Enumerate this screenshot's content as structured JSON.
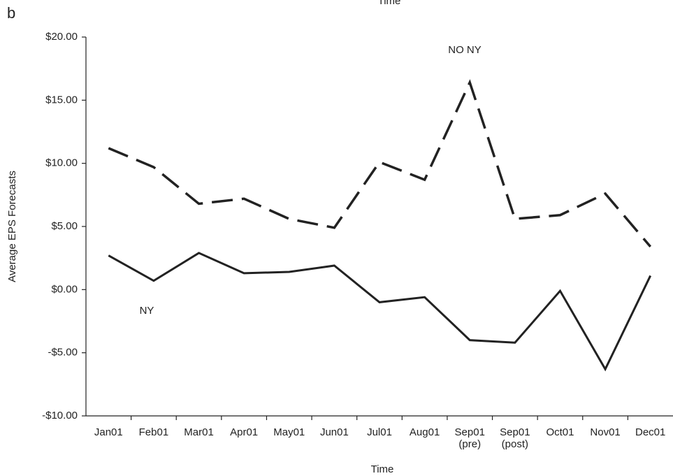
{
  "chart_data": {
    "type": "line",
    "panel_label": "b",
    "top_label": "Time",
    "title": null,
    "x_label": "Time",
    "y_label": "Average EPS Forecasts",
    "categories": [
      "Jan01",
      "Feb01",
      "Mar01",
      "Apr01",
      "May01",
      "Jun01",
      "Jul01",
      "Aug01",
      "Sep01\n(pre)",
      "Sep01\n(post)",
      "Oct01",
      "Nov01",
      "Dec01"
    ],
    "series": [
      {
        "name": "NO NY",
        "color": "#222222",
        "dash": true,
        "values": [
          11.2,
          9.7,
          6.8,
          7.2,
          5.6,
          4.9,
          10.1,
          8.7,
          16.4,
          5.6,
          5.9,
          7.6,
          3.4
        ]
      },
      {
        "name": "NY",
        "color": "#222222",
        "dash": false,
        "values": [
          2.7,
          0.7,
          2.9,
          1.3,
          1.4,
          1.9,
          -1.0,
          -0.6,
          -4.0,
          -4.2,
          -0.1,
          -6.3,
          1.1
        ]
      }
    ],
    "ylim": [
      -10,
      20
    ],
    "yticks": [
      {
        "value": -10,
        "label": "-$10.00"
      },
      {
        "value": -5,
        "label": "-$5.00"
      },
      {
        "value": 0,
        "label": "$0.00"
      },
      {
        "value": 5,
        "label": "$5.00"
      },
      {
        "value": 10,
        "label": "$10.00"
      },
      {
        "value": 15,
        "label": "$15.00"
      },
      {
        "value": 20,
        "label": "$20.00"
      }
    ],
    "grid": false
  }
}
